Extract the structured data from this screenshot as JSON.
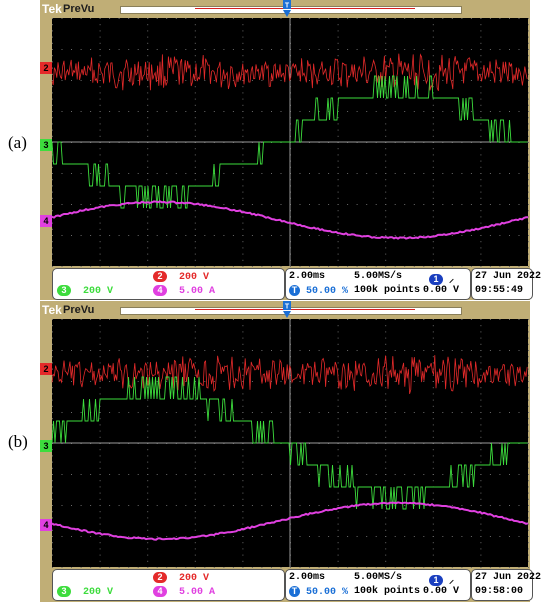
{
  "panels": [
    {
      "label": "(a)",
      "brand": "Tek",
      "mode": "PreVu",
      "channels": {
        "ch2": "2",
        "ch3": "3",
        "ch4": "4"
      },
      "scale": {
        "ch2_num": "2",
        "ch2_scale": "200 V",
        "ch3_num": "3",
        "ch3_scale": "200 V",
        "ch4_num": "4",
        "ch4_scale": "5.00 A"
      },
      "timebase": "2.00ms",
      "trigger_position": "50.00 %",
      "sample_rate": "5.00MS/s",
      "record_length": "100k points",
      "trigger_channel": "1",
      "trigger_slope": "⸝",
      "trigger_level": "0.00 V",
      "date": "27 Jun 2022",
      "time": "09:55:49",
      "ch3_sign": -1
    },
    {
      "label": "(b)",
      "brand": "Tek",
      "mode": "PreVu",
      "channels": {
        "ch2": "2",
        "ch3": "3",
        "ch4": "4"
      },
      "scale": {
        "ch2_num": "2",
        "ch2_scale": "200 V",
        "ch3_num": "3",
        "ch3_scale": "200 V",
        "ch4_num": "4",
        "ch4_scale": "5.00 A"
      },
      "timebase": "2.00ms",
      "trigger_position": "50.00 %",
      "sample_rate": "5.00MS/s",
      "record_length": "100k points",
      "trigger_channel": "1",
      "trigger_slope": "⸝",
      "trigger_level": "0.00 V",
      "date": "27 Jun 2022",
      "time": "09:58:00",
      "ch3_sign": 1
    }
  ],
  "colors": {
    "bezel": "#c0ae76",
    "ch2": "#e42a2a",
    "ch3": "#3ddc3d",
    "ch4": "#e040e0",
    "trigger": "#1a6fd6",
    "grid": "#6a6a6a"
  }
}
